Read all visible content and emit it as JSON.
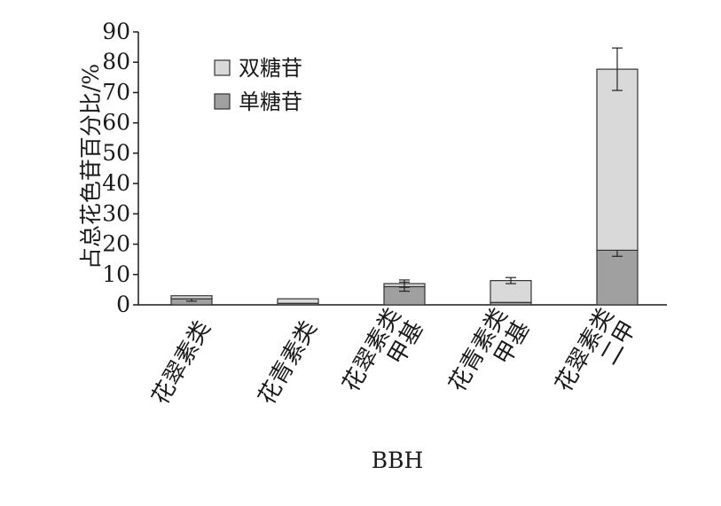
{
  "chart_data": {
    "type": "bar",
    "stacked": true,
    "categories": [
      [
        "花翠素类"
      ],
      [
        "花青素类"
      ],
      [
        "甲基",
        "花翠素类"
      ],
      [
        "甲基",
        "花青素类"
      ],
      [
        "二甲",
        "花翠素类"
      ]
    ],
    "series": [
      {
        "name": "单糖苷",
        "color": "#a0a0a0",
        "values": [
          2,
          0.5,
          6,
          0.8,
          18
        ],
        "errors": [
          0.8,
          0,
          1.5,
          0,
          2
        ]
      },
      {
        "name": "双糖苷",
        "color": "#d9d9d9",
        "values": [
          1,
          1.5,
          1,
          7.2,
          59.7
        ],
        "errors": [
          0,
          0,
          1.2,
          1,
          7
        ]
      }
    ],
    "ylabel": "占总花色苷百分比/%",
    "xlabel": "BBH",
    "ylim": [
      0,
      90
    ],
    "yticks": [
      0,
      10,
      20,
      30,
      40,
      50,
      60,
      70,
      80,
      90
    ],
    "legend_order": [
      "双糖苷",
      "单糖苷"
    ],
    "legend_position": "top-left",
    "grid": false
  }
}
